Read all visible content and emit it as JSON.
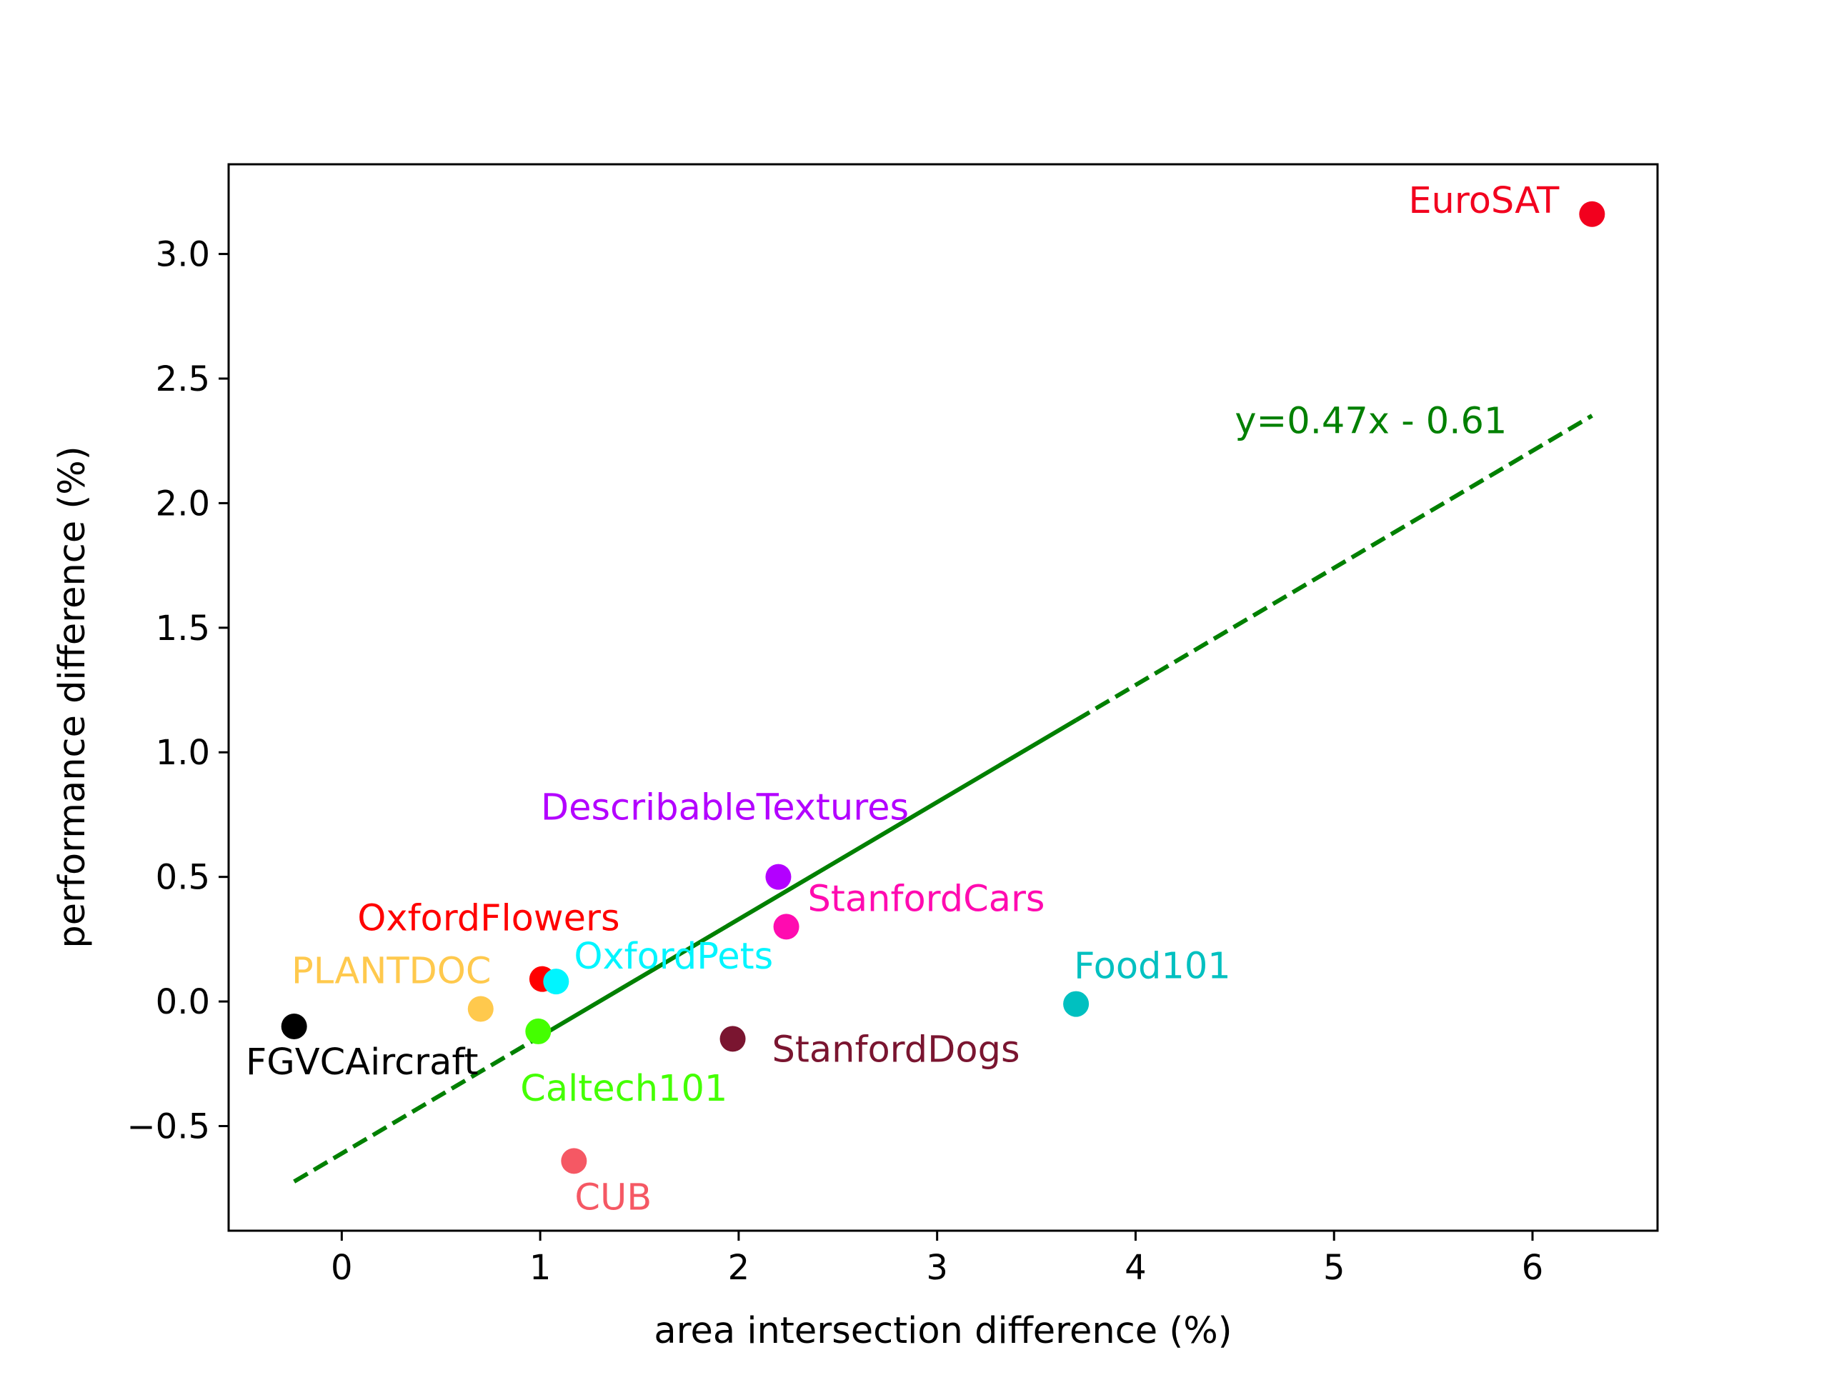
{
  "chart_data": {
    "type": "scatter",
    "title": "",
    "xlabel": "area intersection difference (%)",
    "ylabel": "performance difference (%)",
    "xlim": [
      -0.57,
      6.63
    ],
    "ylim": [
      -0.92,
      3.36
    ],
    "xticks": [
      0,
      1,
      2,
      3,
      4,
      5,
      6
    ],
    "xtick_labels": [
      "0",
      "1",
      "2",
      "3",
      "4",
      "5",
      "6"
    ],
    "yticks": [
      -0.5,
      0.0,
      0.5,
      1.0,
      1.5,
      2.0,
      2.5,
      3.0
    ],
    "ytick_labels": [
      "−0.5",
      "0.0",
      "0.5",
      "1.0",
      "1.5",
      "2.0",
      "2.5",
      "3.0"
    ],
    "grid": false,
    "points": [
      {
        "name": "EuroSAT",
        "x": 6.3,
        "y": 3.16,
        "color": "#f2001e",
        "label_pos": "upper-left"
      },
      {
        "name": "DescribableTextures",
        "x": 2.2,
        "y": 0.5,
        "color": "#b300ff",
        "label_pos": "above-left"
      },
      {
        "name": "StanfordCars",
        "x": 2.24,
        "y": 0.3,
        "color": "#ff0bb0",
        "label_pos": "upper-right"
      },
      {
        "name": "OxfordFlowers",
        "x": 1.01,
        "y": 0.09,
        "color": "#ff0000",
        "label_pos": "above-left"
      },
      {
        "name": "OxfordPets",
        "x": 1.08,
        "y": 0.08,
        "color": "#00f5ff",
        "label_pos": "upper-right"
      },
      {
        "name": "PLANTDOC",
        "x": 0.7,
        "y": -0.03,
        "color": "#ffc94d",
        "label_pos": "above-left"
      },
      {
        "name": "FGVCAircraft",
        "x": -0.24,
        "y": -0.1,
        "color": "#000000",
        "label_pos": "below"
      },
      {
        "name": "Caltech101",
        "x": 0.99,
        "y": -0.12,
        "color": "#44ff00",
        "label_pos": "below-right"
      },
      {
        "name": "StanfordDogs",
        "x": 1.97,
        "y": -0.15,
        "color": "#7a1530",
        "label_pos": "lower-right"
      },
      {
        "name": "Food101",
        "x": 3.7,
        "y": -0.01,
        "color": "#00c0c0",
        "label_pos": "upper-right"
      },
      {
        "name": "CUB",
        "x": 1.17,
        "y": -0.64,
        "color": "#f55864",
        "label_pos": "below-right"
      }
    ],
    "fit_line": {
      "equation_label": "y=0.47x - 0.61",
      "slope": 0.47,
      "intercept": -0.61,
      "x_start": -0.24,
      "x_end": 6.3,
      "color": "#008000",
      "style": "dashed with solid segment"
    }
  }
}
